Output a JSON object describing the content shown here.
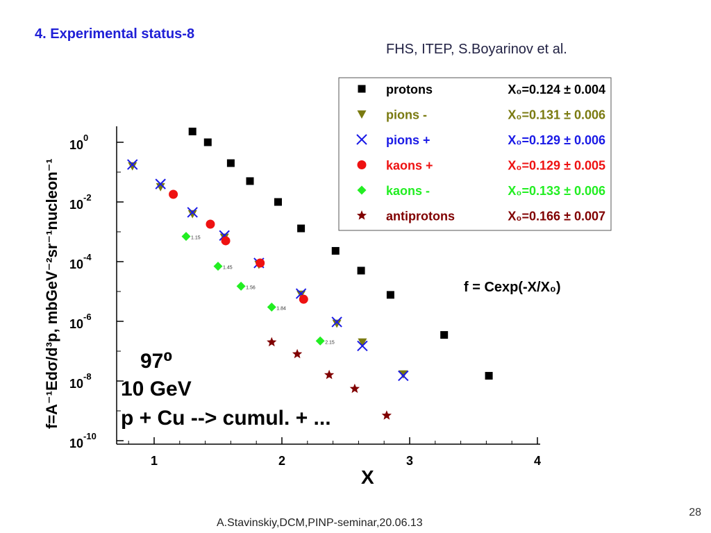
{
  "slide": {
    "title": "4. Experimental status-8",
    "credit": "FHS, ITEP, S.Boyarinov et al.",
    "page_number": "28",
    "footer": "A.Stavinskiy,DCM,PINP-seminar,20.06.13"
  },
  "chart_data": {
    "type": "scatter",
    "xlabel": "X",
    "ylabel": "f=A⁻¹Edσ/d³p, mbGeV⁻²sr⁻¹nucleon⁻¹",
    "xlim": [
      0.7,
      4.0
    ],
    "ylim_log10": [
      -10,
      0.7
    ],
    "y_scale": "log",
    "x_ticks": [
      "1",
      "2",
      "3",
      "4"
    ],
    "y_ticks": [
      {
        "base": "10",
        "exp": "0"
      },
      {
        "base": "10",
        "exp": "-2"
      },
      {
        "base": "10",
        "exp": "-4"
      },
      {
        "base": "10",
        "exp": "-6"
      },
      {
        "base": "10",
        "exp": "-8"
      },
      {
        "base": "10",
        "exp": "-10"
      }
    ],
    "grid": false,
    "legend_position": "top-right",
    "formula": "f = Cexp(-X/X₀)",
    "annotations": {
      "angle": "97⁰",
      "energy": "10 GeV",
      "reaction": "p + Cu --> cumul. + ..."
    },
    "series": [
      {
        "name": "protons",
        "x0_label": "X₀=0.124 ± 0.004",
        "color": "#000000",
        "marker": "square",
        "points": [
          [
            1.3,
            2.3
          ],
          [
            1.42,
            1.0
          ],
          [
            1.6,
            0.2
          ],
          [
            1.75,
            0.05
          ],
          [
            1.97,
            0.01
          ],
          [
            2.15,
            0.0013
          ],
          [
            2.42,
            0.00023
          ],
          [
            2.62,
            5e-05
          ],
          [
            2.85,
            7.7e-06
          ],
          [
            3.27,
            3.5e-07
          ],
          [
            3.62,
            1.5e-08
          ]
        ]
      },
      {
        "name": "pions -",
        "x0_label": "X₀=0.131 ± 0.006",
        "color": "#7a7a10",
        "marker": "triangle-down",
        "points": [
          [
            0.83,
            0.16
          ],
          [
            1.05,
            0.032
          ],
          [
            1.3,
            0.004
          ],
          [
            1.55,
            0.00065
          ],
          [
            1.82,
            8e-05
          ],
          [
            2.15,
            8e-06
          ],
          [
            2.43,
            8.5e-07
          ],
          [
            2.63,
            2e-07
          ],
          [
            2.95,
            1.7e-08
          ]
        ]
      },
      {
        "name": "pions +",
        "x0_label": "X₀=0.129 ± 0.006",
        "color": "#1a1ae6",
        "marker": "cross",
        "points": [
          [
            0.83,
            0.18
          ],
          [
            1.05,
            0.04
          ],
          [
            1.3,
            0.0045
          ],
          [
            1.55,
            0.00075
          ],
          [
            1.82,
            9e-05
          ],
          [
            2.15,
            8.5e-06
          ],
          [
            2.43,
            9.5e-07
          ],
          [
            2.63,
            1.5e-07
          ],
          [
            2.95,
            1.5e-08
          ]
        ]
      },
      {
        "name": "kaons +",
        "x0_label": "X₀=0.129 ± 0.005",
        "color": "#ee1111",
        "marker": "circle",
        "points": [
          [
            1.15,
            0.018
          ],
          [
            1.44,
            0.0018
          ],
          [
            1.56,
            0.0005
          ],
          [
            1.83,
            9e-05
          ],
          [
            2.17,
            5.5e-06
          ]
        ]
      },
      {
        "name": "kaons -",
        "x0_label": "X₀=0.133 ± 0.006",
        "color": "#22ee22",
        "marker": "diamond",
        "points": [
          [
            1.25,
            0.0007
          ],
          [
            1.5,
            7e-05
          ],
          [
            1.68,
            1.5e-05
          ],
          [
            1.92,
            3e-06
          ],
          [
            2.3,
            2.2e-07
          ]
        ],
        "point_labels": [
          "1.15",
          "1.45",
          "1.56",
          "1.84",
          "2.15"
        ]
      },
      {
        "name": "antiprotons",
        "x0_label": "X₀=0.166 ± 0.007",
        "color": "#800000",
        "marker": "star",
        "points": [
          [
            1.92,
            2e-07
          ],
          [
            2.12,
            8e-08
          ],
          [
            2.37,
            1.6e-08
          ],
          [
            2.57,
            5.5e-09
          ],
          [
            2.82,
            7e-10
          ]
        ]
      }
    ]
  }
}
